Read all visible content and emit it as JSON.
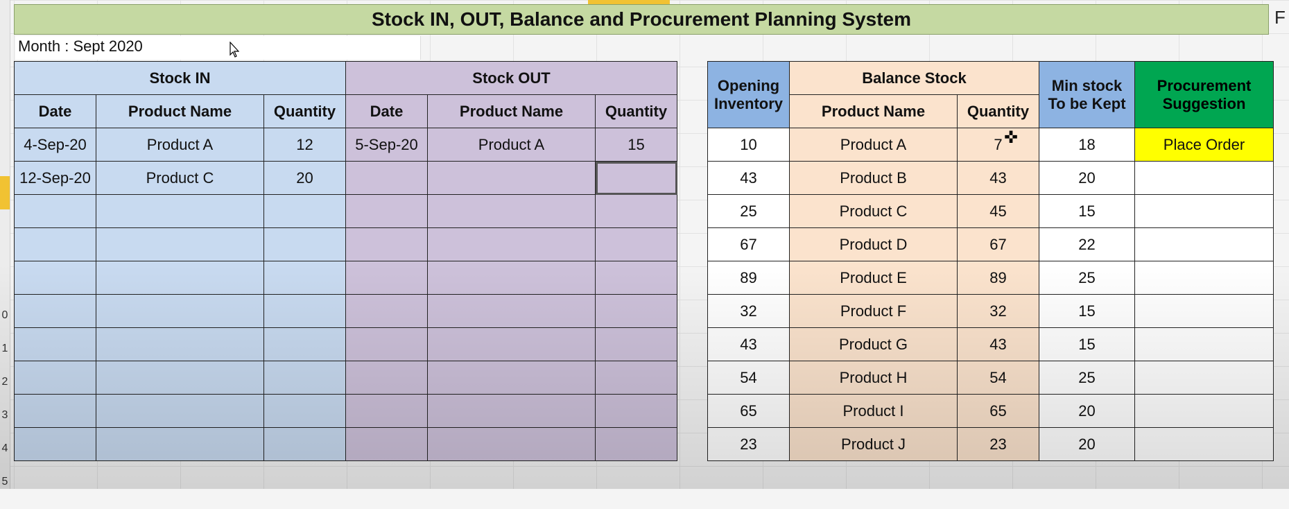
{
  "sheet": {
    "title": "Stock IN, OUT, Balance and Procurement Planning System",
    "month": "Month : Sept 2020",
    "edge_letter": "F",
    "row_numbers": [
      "",
      "",
      "",
      "",
      "",
      "",
      "",
      "",
      "",
      "0",
      "1",
      "2",
      "3",
      "4",
      "5"
    ]
  },
  "stock_in": {
    "header": "Stock IN",
    "columns": [
      "Date",
      "Product Name",
      "Quantity"
    ],
    "rows": [
      [
        "4-Sep-20",
        "Product A",
        "12"
      ],
      [
        "12-Sep-20",
        "Product C",
        "20"
      ],
      [
        "",
        "",
        ""
      ],
      [
        "",
        "",
        ""
      ],
      [
        "",
        "",
        ""
      ],
      [
        "",
        "",
        ""
      ],
      [
        "",
        "",
        ""
      ],
      [
        "",
        "",
        ""
      ],
      [
        "",
        "",
        ""
      ],
      [
        "",
        "",
        ""
      ]
    ]
  },
  "stock_out": {
    "header": "Stock OUT",
    "columns": [
      "Date",
      "Product Name",
      "Quantity"
    ],
    "rows": [
      [
        "5-Sep-20",
        "Product A",
        "15"
      ],
      [
        "",
        "",
        ""
      ],
      [
        "",
        "",
        ""
      ],
      [
        "",
        "",
        ""
      ],
      [
        "",
        "",
        ""
      ],
      [
        "",
        "",
        ""
      ],
      [
        "",
        "",
        ""
      ],
      [
        "",
        "",
        ""
      ],
      [
        "",
        "",
        ""
      ],
      [
        "",
        "",
        ""
      ]
    ]
  },
  "balance": {
    "opening_header_1": "Opening",
    "opening_header_2": "Inventory",
    "balance_header": "Balance Stock",
    "columns": [
      "Product Name",
      "Quantity"
    ],
    "min_header_1": "Min stock",
    "min_header_2": "To be Kept",
    "proc_header_1": "Procurement",
    "proc_header_2": "Suggestion",
    "rows": [
      [
        "10",
        "Product A",
        "7",
        "18",
        "Place Order"
      ],
      [
        "43",
        "Product B",
        "43",
        "20",
        ""
      ],
      [
        "25",
        "Product C",
        "45",
        "15",
        ""
      ],
      [
        "67",
        "Product D",
        "67",
        "22",
        ""
      ],
      [
        "89",
        "Product E",
        "89",
        "25",
        ""
      ],
      [
        "32",
        "Product F",
        "32",
        "15",
        ""
      ],
      [
        "43",
        "Product G",
        "43",
        "15",
        ""
      ],
      [
        "54",
        "Product H",
        "54",
        "25",
        ""
      ],
      [
        "65",
        "Product I",
        "65",
        "20",
        ""
      ],
      [
        "23",
        "Product J",
        "23",
        "20",
        ""
      ]
    ]
  },
  "colors": {
    "title_bg": "#c5d9a2",
    "stock_in_bg": "#c8daf0",
    "stock_out_bg": "#cdc1da",
    "opening_bg": "#8db3e2",
    "balance_bg": "#fbe3cd",
    "procurement_bg": "#00a651",
    "order_bg": "#ffff00"
  }
}
